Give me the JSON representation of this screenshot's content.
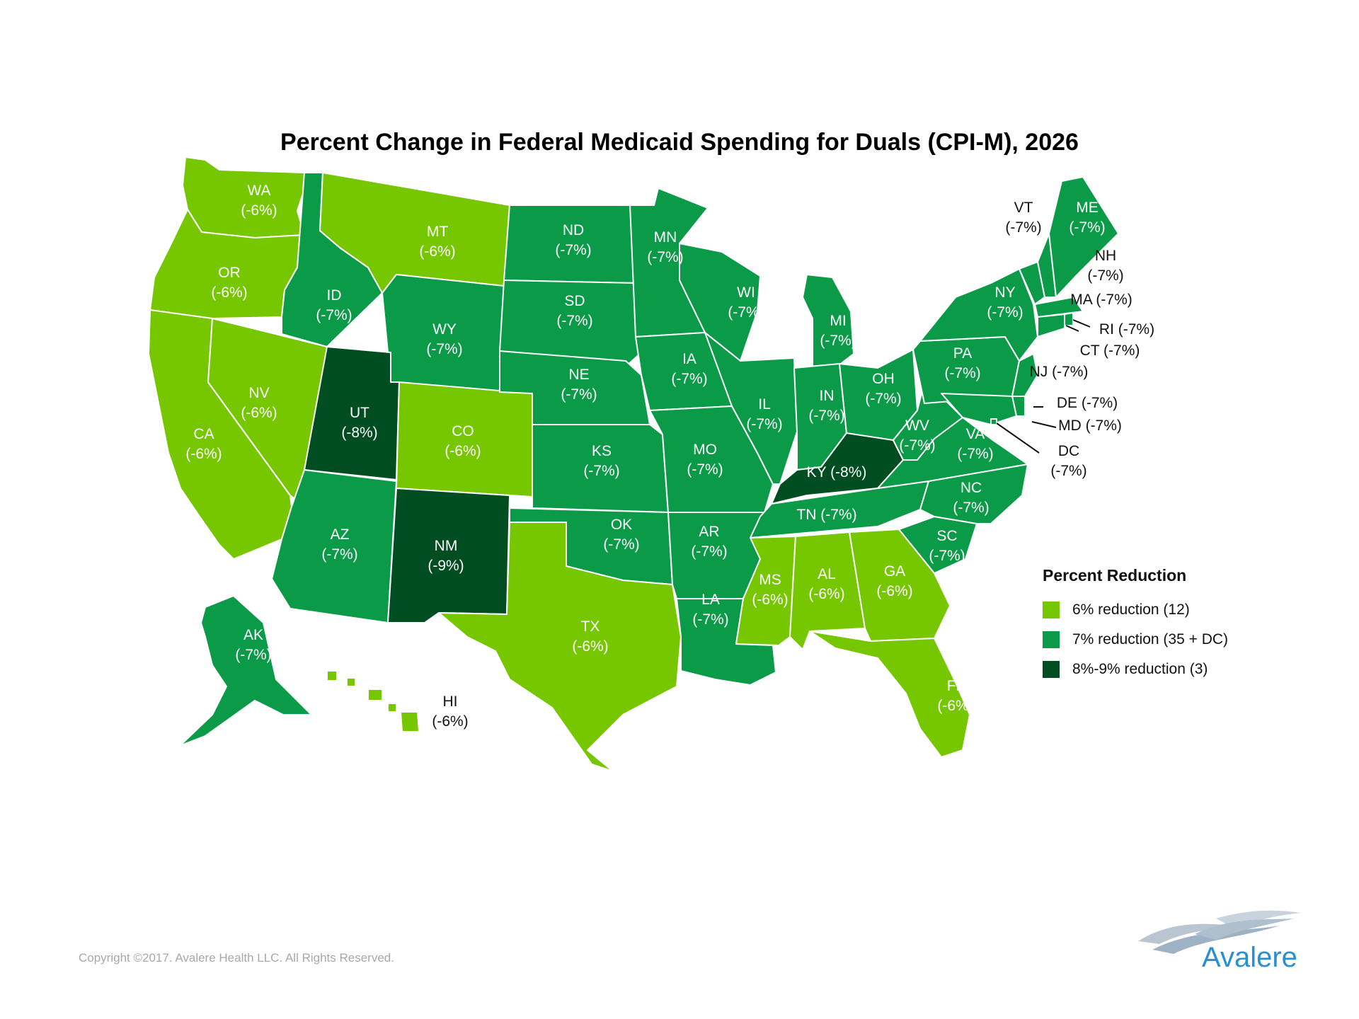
{
  "title": "Percent Change in Federal Medicaid Spending for Duals (CPI-M), 2026",
  "colors": {
    "tier_6": "#76c600",
    "tier_7": "#0a9a48",
    "tier_89": "#004d21",
    "border": "#ffffff"
  },
  "legend": {
    "title": "Percent Reduction",
    "items": [
      {
        "label": "6% reduction (12)",
        "tier": "tier_6"
      },
      {
        "label": "7% reduction (35 + DC)",
        "tier": "tier_7"
      },
      {
        "label": "8%-9% reduction (3)",
        "tier": "tier_89"
      }
    ]
  },
  "states": [
    {
      "abbr": "WA",
      "value": "(-6%)",
      "tier": "tier_6"
    },
    {
      "abbr": "OR",
      "value": "(-6%)",
      "tier": "tier_6"
    },
    {
      "abbr": "CA",
      "value": "(-6%)",
      "tier": "tier_6"
    },
    {
      "abbr": "NV",
      "value": "(-6%)",
      "tier": "tier_6"
    },
    {
      "abbr": "ID",
      "value": "(-7%)",
      "tier": "tier_7"
    },
    {
      "abbr": "MT",
      "value": "(-6%)",
      "tier": "tier_6"
    },
    {
      "abbr": "WY",
      "value": "(-7%)",
      "tier": "tier_7"
    },
    {
      "abbr": "UT",
      "value": "(-8%)",
      "tier": "tier_89"
    },
    {
      "abbr": "CO",
      "value": "(-6%)",
      "tier": "tier_6"
    },
    {
      "abbr": "AZ",
      "value": "(-7%)",
      "tier": "tier_7"
    },
    {
      "abbr": "NM",
      "value": "(-9%)",
      "tier": "tier_89"
    },
    {
      "abbr": "ND",
      "value": "(-7%)",
      "tier": "tier_7"
    },
    {
      "abbr": "SD",
      "value": "(-7%)",
      "tier": "tier_7"
    },
    {
      "abbr": "NE",
      "value": "(-7%)",
      "tier": "tier_7"
    },
    {
      "abbr": "KS",
      "value": "(-7%)",
      "tier": "tier_7"
    },
    {
      "abbr": "OK",
      "value": "(-7%)",
      "tier": "tier_7"
    },
    {
      "abbr": "TX",
      "value": "(-6%)",
      "tier": "tier_6"
    },
    {
      "abbr": "MN",
      "value": "(-7%)",
      "tier": "tier_7"
    },
    {
      "abbr": "IA",
      "value": "(-7%)",
      "tier": "tier_7"
    },
    {
      "abbr": "MO",
      "value": "(-7%)",
      "tier": "tier_7"
    },
    {
      "abbr": "AR",
      "value": "(-7%)",
      "tier": "tier_7"
    },
    {
      "abbr": "LA",
      "value": "(-7%)",
      "tier": "tier_7"
    },
    {
      "abbr": "WI",
      "value": "(-7%)",
      "tier": "tier_7"
    },
    {
      "abbr": "IL",
      "value": "(-7%)",
      "tier": "tier_7"
    },
    {
      "abbr": "MI",
      "value": "(-7%)",
      "tier": "tier_7"
    },
    {
      "abbr": "IN",
      "value": "(-7%)",
      "tier": "tier_7"
    },
    {
      "abbr": "OH",
      "value": "(-7%)",
      "tier": "tier_7"
    },
    {
      "abbr": "KY",
      "value": "(-8%)",
      "tier": "tier_89"
    },
    {
      "abbr": "TN",
      "value": "(-7%)",
      "tier": "tier_7"
    },
    {
      "abbr": "MS",
      "value": "(-6%)",
      "tier": "tier_6"
    },
    {
      "abbr": "AL",
      "value": "(-6%)",
      "tier": "tier_6"
    },
    {
      "abbr": "GA",
      "value": "(-6%)",
      "tier": "tier_6"
    },
    {
      "abbr": "FL",
      "value": "(-6%)",
      "tier": "tier_6"
    },
    {
      "abbr": "SC",
      "value": "(-7%)",
      "tier": "tier_7"
    },
    {
      "abbr": "NC",
      "value": "(-7%)",
      "tier": "tier_7"
    },
    {
      "abbr": "VA",
      "value": "(-7%)",
      "tier": "tier_7"
    },
    {
      "abbr": "WV",
      "value": "(-7%)",
      "tier": "tier_7"
    },
    {
      "abbr": "PA",
      "value": "(-7%)",
      "tier": "tier_7"
    },
    {
      "abbr": "NY",
      "value": "(-7%)",
      "tier": "tier_7"
    },
    {
      "abbr": "VT",
      "value": "(-7%)",
      "tier": "tier_7"
    },
    {
      "abbr": "NH",
      "value": "(-7%)",
      "tier": "tier_7"
    },
    {
      "abbr": "ME",
      "value": "(-7%)",
      "tier": "tier_7"
    },
    {
      "abbr": "MA",
      "value": "(-7%)",
      "tier": "tier_7"
    },
    {
      "abbr": "RI",
      "value": "(-7%)",
      "tier": "tier_7"
    },
    {
      "abbr": "CT",
      "value": "(-7%)",
      "tier": "tier_7"
    },
    {
      "abbr": "NJ",
      "value": "(-7%)",
      "tier": "tier_7"
    },
    {
      "abbr": "DE",
      "value": "(-7%)",
      "tier": "tier_7"
    },
    {
      "abbr": "MD",
      "value": "(-7%)",
      "tier": "tier_7"
    },
    {
      "abbr": "DC",
      "value": "(-7%)",
      "tier": "tier_7"
    },
    {
      "abbr": "AK",
      "value": "(-7%)",
      "tier": "tier_7"
    },
    {
      "abbr": "HI",
      "value": "(-6%)",
      "tier": "tier_6"
    }
  ],
  "copyright": "Copyright ©2017. Avalere Health LLC. All Rights Reserved.",
  "logo_text": "Avalere"
}
